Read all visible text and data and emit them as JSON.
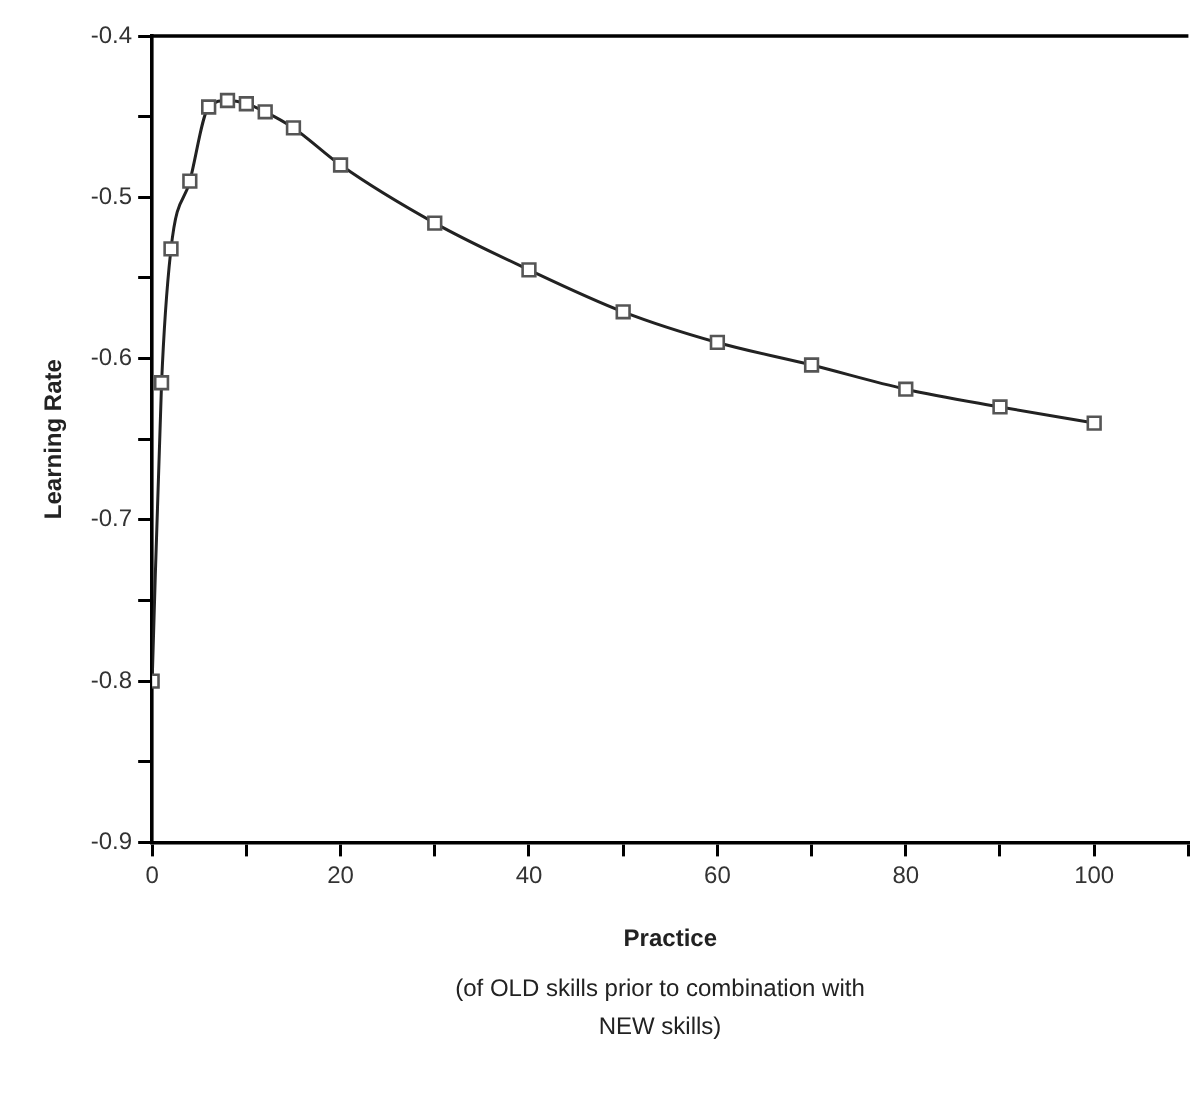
{
  "chart_data": {
    "type": "line",
    "xlabel": "Practice",
    "ylabel": "Learning Rate",
    "annotations": [
      "(of OLD skills prior to combination with NEW skills)"
    ],
    "x": [
      0,
      1,
      2,
      4,
      6,
      8,
      10,
      12,
      15,
      20,
      30,
      40,
      50,
      60,
      70,
      80,
      90,
      100
    ],
    "series": [
      {
        "color": "#222222",
        "values": [
          -0.8,
          -0.615,
          -0.532,
          -0.49,
          -0.444,
          -0.44,
          -0.442,
          -0.447,
          -0.457,
          -0.48,
          -0.516,
          -0.545,
          -0.571,
          -0.59,
          -0.604,
          -0.619,
          -0.63,
          -0.64
        ]
      }
    ],
    "xlim": [
      0,
      110
    ],
    "xticks": [
      0,
      {
        "value": 10,
        "label": null
      },
      20,
      {
        "value": 30,
        "label": null
      },
      40,
      {
        "value": 50,
        "label": null
      },
      60,
      {
        "value": 70,
        "label": null
      },
      80,
      {
        "value": 90,
        "label": null
      },
      100,
      {
        "value": 110,
        "label": null
      }
    ],
    "ylim": [
      -0.9,
      -0.4
    ],
    "yticks": [
      -0.9,
      {
        "value": -0.85,
        "label": null
      },
      -0.8,
      {
        "value": -0.75,
        "label": null
      },
      -0.7,
      {
        "value": -0.65,
        "label": null
      },
      -0.6,
      {
        "value": -0.55,
        "label": null
      },
      -0.5,
      {
        "value": -0.45,
        "label": null
      },
      -0.4
    ],
    "marker": "square",
    "legend": false
  }
}
